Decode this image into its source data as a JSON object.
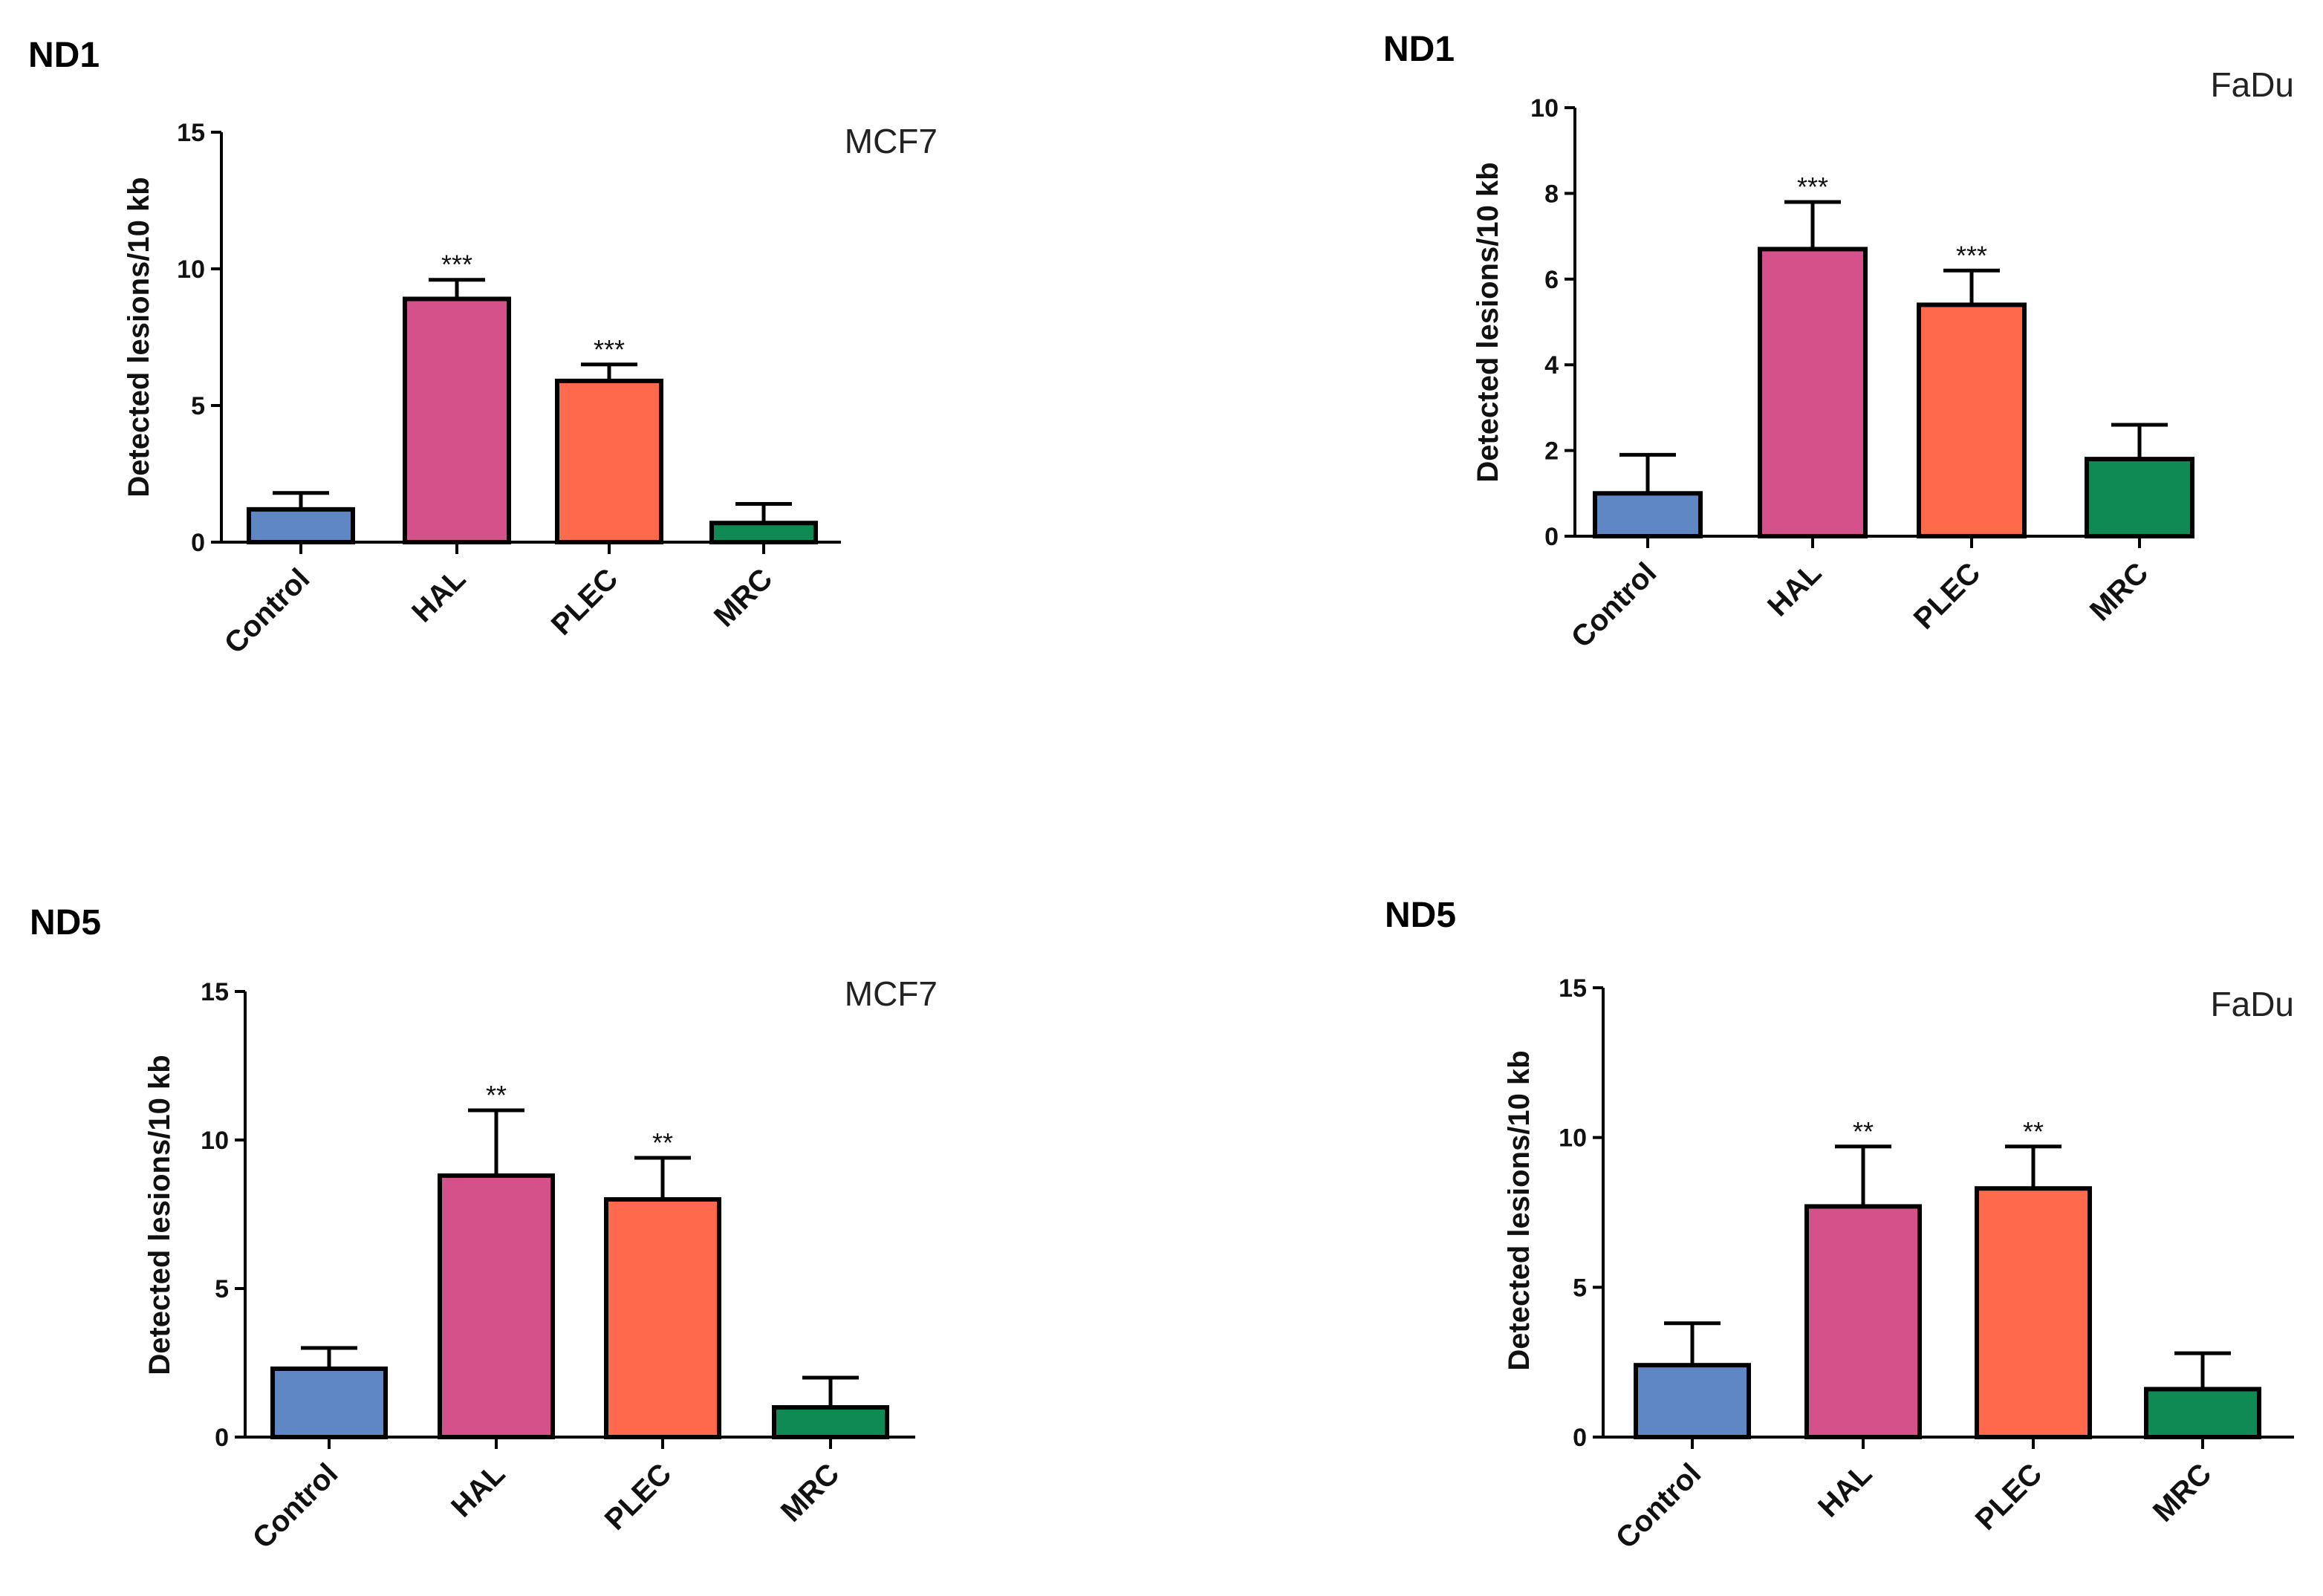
{
  "colors": {
    "Control": "#5f87c4",
    "HAL": "#d5518a",
    "PLEC": "#ff6a4d",
    "MRC": "#0f8a55"
  },
  "chart_data": [
    {
      "type": "bar",
      "panel": "ND1",
      "cell_line": "MCF7",
      "categories": [
        "Control",
        "HAL",
        "PLEC",
        "MRC"
      ],
      "values": [
        1.2,
        8.9,
        5.9,
        0.7
      ],
      "errors": [
        0.6,
        0.7,
        0.6,
        0.7
      ],
      "significance": [
        "",
        "***",
        "***",
        ""
      ],
      "ylabel": "Detected lesions/10 kb",
      "ylim": [
        0,
        15
      ],
      "yticks": [
        0,
        5,
        10,
        15
      ]
    },
    {
      "type": "bar",
      "panel": "ND1",
      "cell_line": "FaDu",
      "categories": [
        "Control",
        "HAL",
        "PLEC",
        "MRC"
      ],
      "values": [
        1.0,
        6.7,
        5.4,
        1.8
      ],
      "errors": [
        0.9,
        1.1,
        0.8,
        0.8
      ],
      "significance": [
        "",
        "***",
        "***",
        ""
      ],
      "ylabel": "Detected lesions/10 kb",
      "ylim": [
        0,
        10
      ],
      "yticks": [
        0,
        2,
        4,
        6,
        8,
        10
      ]
    },
    {
      "type": "bar",
      "panel": "ND5",
      "cell_line": "MCF7",
      "categories": [
        "Control",
        "HAL",
        "PLEC",
        "MRC"
      ],
      "values": [
        2.3,
        8.8,
        8.0,
        1.0
      ],
      "errors": [
        0.7,
        2.2,
        1.4,
        1.0
      ],
      "significance": [
        "",
        "**",
        "**",
        ""
      ],
      "ylabel": "Detected lesions/10 kb",
      "ylim": [
        0,
        15
      ],
      "yticks": [
        0,
        5,
        10,
        15
      ]
    },
    {
      "type": "bar",
      "panel": "ND5",
      "cell_line": "FaDu",
      "categories": [
        "Control",
        "HAL",
        "PLEC",
        "MRC"
      ],
      "values": [
        2.4,
        7.7,
        8.3,
        1.6
      ],
      "errors": [
        1.4,
        2.0,
        1.4,
        1.2
      ],
      "significance": [
        "",
        "**",
        "**",
        ""
      ],
      "ylabel": "Detected lesions/10 kb",
      "ylim": [
        0,
        15
      ],
      "yticks": [
        0,
        5,
        10,
        15
      ]
    }
  ]
}
